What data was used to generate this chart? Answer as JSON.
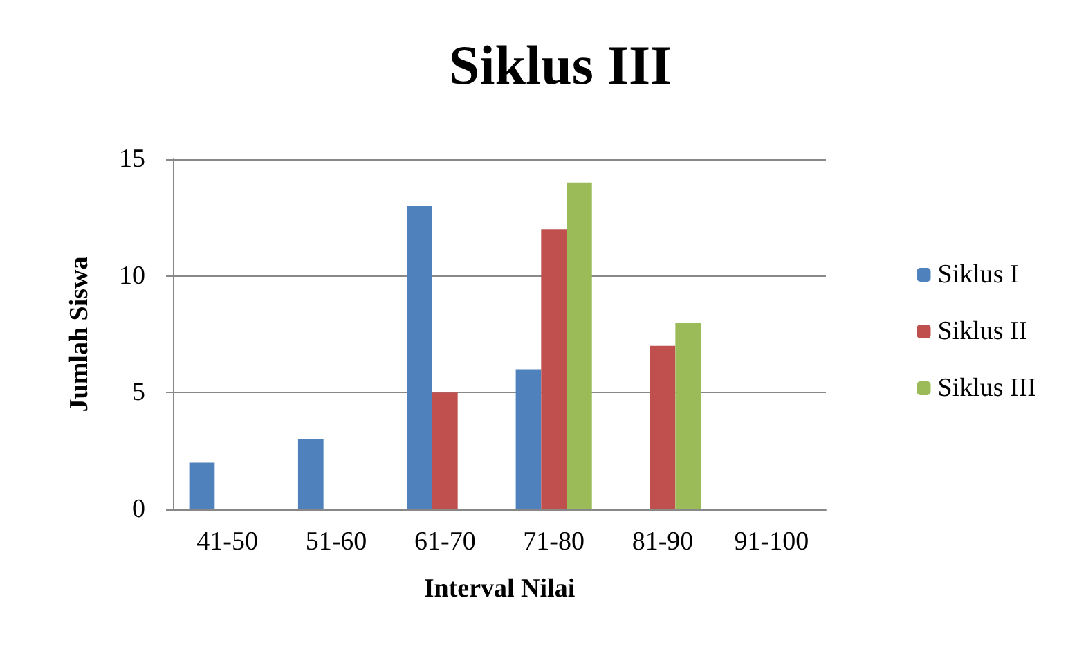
{
  "chart_data": {
    "type": "bar",
    "title": "Siklus III",
    "xlabel": "Interval Nilai",
    "ylabel": "Jumlah Siswa",
    "categories": [
      "41-50",
      "51-60",
      "61-70",
      "71-80",
      "81-90",
      "91-100"
    ],
    "series": [
      {
        "name": "Siklus I",
        "color": "#4f81bd",
        "values": [
          2,
          3,
          13,
          6,
          0,
          0
        ]
      },
      {
        "name": "Siklus II",
        "color": "#c0504d",
        "values": [
          0,
          0,
          5,
          12,
          7,
          0
        ]
      },
      {
        "name": "Siklus III",
        "color": "#9bbb59",
        "values": [
          0,
          0,
          0,
          14,
          8,
          0
        ]
      }
    ],
    "ylim": [
      0,
      15
    ],
    "yticks": [
      0,
      5,
      10,
      15
    ],
    "grid": "y",
    "legend": "right"
  }
}
